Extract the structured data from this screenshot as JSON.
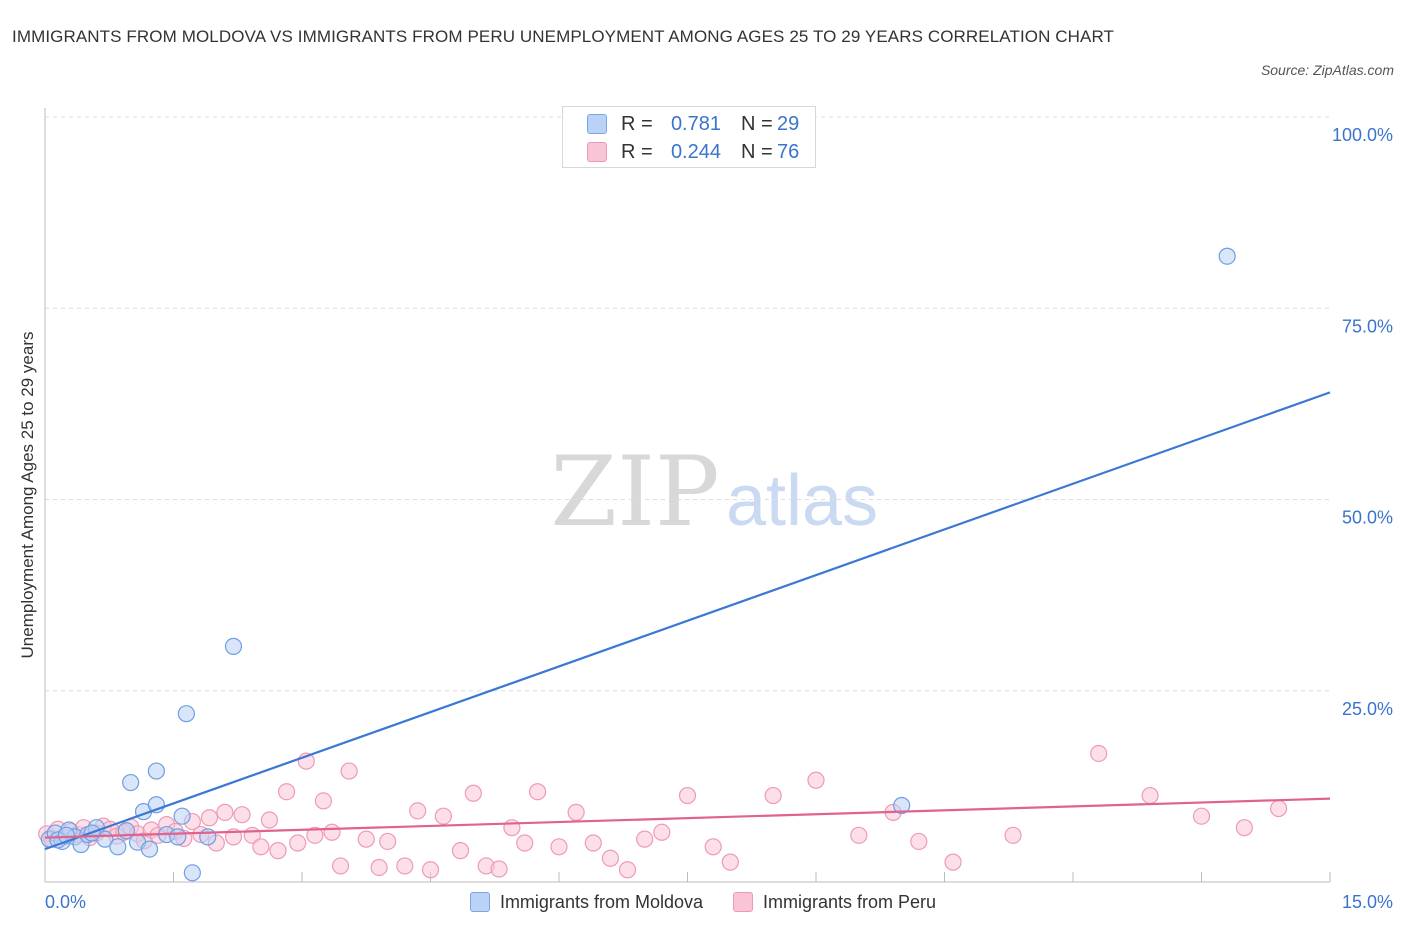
{
  "title": "IMMIGRANTS FROM MOLDOVA VS IMMIGRANTS FROM PERU UNEMPLOYMENT AMONG AGES 25 TO 29 YEARS CORRELATION CHART",
  "source": "Source: ZipAtlas.com",
  "watermark": {
    "zip": "ZIP",
    "atlas": "atlas"
  },
  "stats": [
    {
      "r_label": "R =",
      "r_value": "0.781",
      "n_label": "N =",
      "n_value": "29"
    },
    {
      "r_label": "R =",
      "r_value": "0.244",
      "n_label": "N =",
      "n_value": "76"
    }
  ],
  "chart_data": {
    "type": "scatter",
    "title": "IMMIGRANTS FROM MOLDOVA VS IMMIGRANTS FROM PERU UNEMPLOYMENT AMONG AGES 25 TO 29 YEARS CORRELATION CHART",
    "xlabel": "",
    "ylabel": "Unemployment Among Ages 25 to 29 years",
    "xlim": [
      0,
      15
    ],
    "ylim": [
      0,
      100
    ],
    "x_tick_labels": [
      "0.0%",
      "15.0%"
    ],
    "y_ticks": [
      25,
      50,
      75,
      100
    ],
    "y_tick_labels": [
      "25.0%",
      "50.0%",
      "75.0%",
      "100.0%"
    ],
    "grid": true,
    "legend_position": "bottom",
    "series": [
      {
        "name": "Immigrants from Moldova",
        "color": "#3a78d4",
        "fill": "#b9d2f5",
        "stroke": "#6f9fe0",
        "trend": {
          "x": [
            0,
            15
          ],
          "y": [
            4.3,
            64
          ]
        },
        "points": [
          [
            0.05,
            5.6
          ],
          [
            0.12,
            6.4
          ],
          [
            0.2,
            5.3
          ],
          [
            0.28,
            6.8
          ],
          [
            0.35,
            5.9
          ],
          [
            0.42,
            4.9
          ],
          [
            0.5,
            6.2
          ],
          [
            0.6,
            7.1
          ],
          [
            0.7,
            5.6
          ],
          [
            0.85,
            4.6
          ],
          [
            0.95,
            6.7
          ],
          [
            1.0,
            13.0
          ],
          [
            1.08,
            5.2
          ],
          [
            1.15,
            9.2
          ],
          [
            1.22,
            4.3
          ],
          [
            1.3,
            14.5
          ],
          [
            1.3,
            10.1
          ],
          [
            1.42,
            6.2
          ],
          [
            1.55,
            5.9
          ],
          [
            1.6,
            8.6
          ],
          [
            1.65,
            22.0
          ],
          [
            1.72,
            1.2
          ],
          [
            1.9,
            5.9
          ],
          [
            2.2,
            30.8
          ],
          [
            0.15,
            5.5
          ],
          [
            0.55,
            6.4
          ],
          [
            0.25,
            6.1
          ],
          [
            10.0,
            10.0
          ],
          [
            13.8,
            81.8
          ]
        ]
      },
      {
        "name": "Immigrants from Peru",
        "color": "#e0628f",
        "fill": "#f9c5d6",
        "stroke": "#ee9ab6",
        "trend": {
          "x": [
            0,
            15
          ],
          "y": [
            5.8,
            10.9
          ]
        },
        "points": [
          [
            0.02,
            6.3
          ],
          [
            0.08,
            5.6
          ],
          [
            0.15,
            6.9
          ],
          [
            0.22,
            5.9
          ],
          [
            0.3,
            6.6
          ],
          [
            0.38,
            6.2
          ],
          [
            0.45,
            7.1
          ],
          [
            0.52,
            5.8
          ],
          [
            0.6,
            6.4
          ],
          [
            0.68,
            7.3
          ],
          [
            0.76,
            6.9
          ],
          [
            0.84,
            6.0
          ],
          [
            0.92,
            6.5
          ],
          [
            1.0,
            7.2
          ],
          [
            1.08,
            6.3
          ],
          [
            1.16,
            5.4
          ],
          [
            1.24,
            6.8
          ],
          [
            1.32,
            6.1
          ],
          [
            1.42,
            7.5
          ],
          [
            1.52,
            6.6
          ],
          [
            1.62,
            5.7
          ],
          [
            1.72,
            7.9
          ],
          [
            1.82,
            6.2
          ],
          [
            1.92,
            8.4
          ],
          [
            2.0,
            5.1
          ],
          [
            2.1,
            9.1
          ],
          [
            2.2,
            5.9
          ],
          [
            2.3,
            8.8
          ],
          [
            2.42,
            6.1
          ],
          [
            2.52,
            4.6
          ],
          [
            2.62,
            8.1
          ],
          [
            2.72,
            4.1
          ],
          [
            2.82,
            11.8
          ],
          [
            2.95,
            5.1
          ],
          [
            3.05,
            15.8
          ],
          [
            3.15,
            6.1
          ],
          [
            3.25,
            10.6
          ],
          [
            3.35,
            6.5
          ],
          [
            3.45,
            2.1
          ],
          [
            3.55,
            14.5
          ],
          [
            3.75,
            5.6
          ],
          [
            3.9,
            1.9
          ],
          [
            4.0,
            5.3
          ],
          [
            4.2,
            2.1
          ],
          [
            4.35,
            9.3
          ],
          [
            4.5,
            1.6
          ],
          [
            4.65,
            8.6
          ],
          [
            4.85,
            4.1
          ],
          [
            5.0,
            11.6
          ],
          [
            5.15,
            2.1
          ],
          [
            5.3,
            1.7
          ],
          [
            5.45,
            7.1
          ],
          [
            5.6,
            5.1
          ],
          [
            5.75,
            11.8
          ],
          [
            6.0,
            4.6
          ],
          [
            6.2,
            9.1
          ],
          [
            6.4,
            5.1
          ],
          [
            6.6,
            3.1
          ],
          [
            6.8,
            1.6
          ],
          [
            7.0,
            5.6
          ],
          [
            7.2,
            6.5
          ],
          [
            7.5,
            11.3
          ],
          [
            7.8,
            4.6
          ],
          [
            8.0,
            2.6
          ],
          [
            8.5,
            11.3
          ],
          [
            9.0,
            13.3
          ],
          [
            9.5,
            6.1
          ],
          [
            9.9,
            9.1
          ],
          [
            10.2,
            5.3
          ],
          [
            10.6,
            2.6
          ],
          [
            11.3,
            6.1
          ],
          [
            12.3,
            16.8
          ],
          [
            12.9,
            11.3
          ],
          [
            13.5,
            8.6
          ],
          [
            14.0,
            7.1
          ],
          [
            14.4,
            9.6
          ]
        ]
      }
    ]
  }
}
